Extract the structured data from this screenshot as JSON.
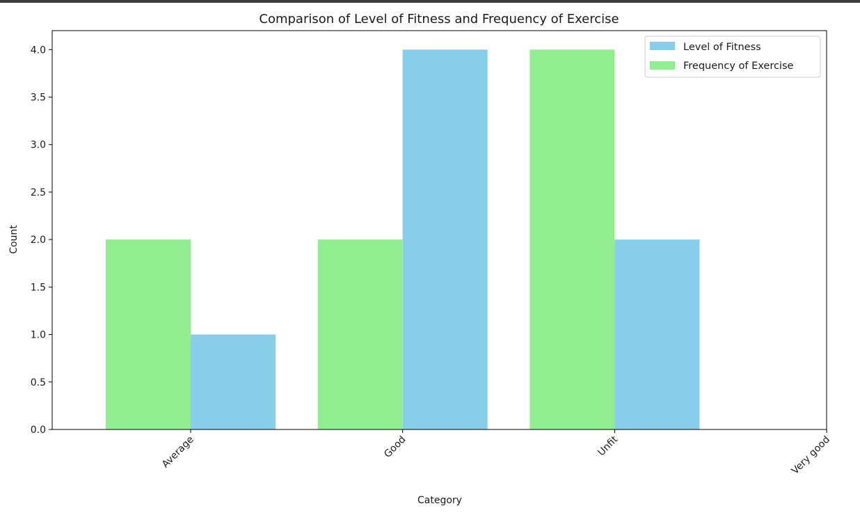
{
  "chart_data": {
    "type": "bar",
    "title": "Comparison of Level of Fitness and Frequency of Exercise",
    "xlabel": "Category",
    "ylabel": "Count",
    "categories": [
      "Average",
      "Good",
      "Unfit",
      "Very good"
    ],
    "series": [
      {
        "name": "Level of Fitness",
        "values": [
          1,
          4,
          2,
          0
        ],
        "color": "#87ceeb"
      },
      {
        "name": "Frequency of Exercise",
        "values": [
          2,
          2,
          4,
          0
        ],
        "color": "#90ee90"
      }
    ],
    "ylim": [
      0,
      4.2
    ],
    "yticks": [
      "0.0",
      "0.5",
      "1.0",
      "1.5",
      "2.0",
      "2.5",
      "3.0",
      "3.5",
      "4.0"
    ],
    "grid": false,
    "legend_position": "top-right"
  }
}
